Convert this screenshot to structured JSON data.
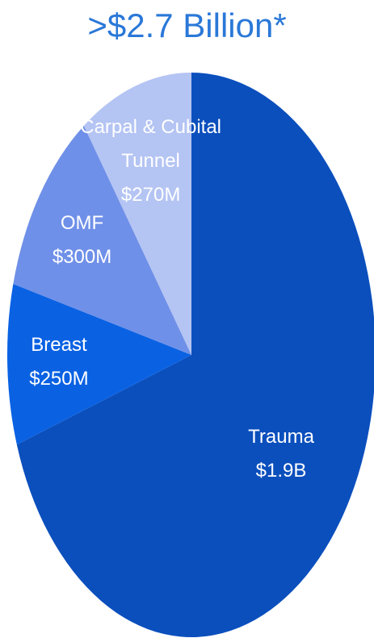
{
  "chart_data": {
    "type": "pie",
    "title": ">$2.7 Billion*",
    "categories": [
      "Trauma",
      "Breast",
      "OMF",
      "Carpal & Cubital Tunnel"
    ],
    "values": [
      1900000000,
      250000000,
      300000000,
      270000000
    ],
    "value_labels": [
      "$1.9B",
      "$250M",
      "$300M",
      "$270M"
    ],
    "colors": [
      "#0b4fbd",
      "#0a62e3",
      "#6f90e8",
      "#b4c4f3"
    ],
    "title_color": "#2a78d8"
  }
}
